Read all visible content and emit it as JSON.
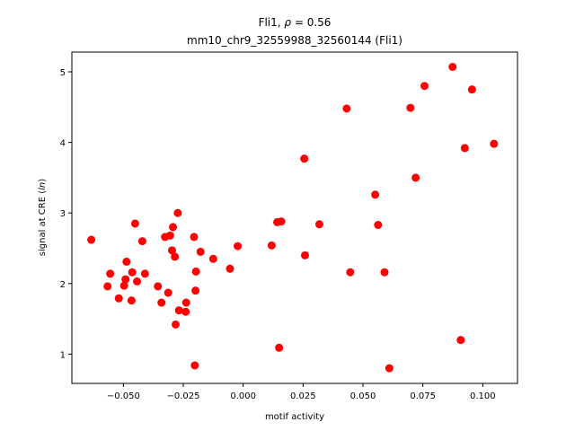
{
  "chart_data": {
    "type": "scatter",
    "title_line1_prefix": "Fli1, ",
    "title_line1_rho": "ρ",
    "title_line1_suffix": " = 0.56",
    "title_line2": "mm10_chr9_32559988_32560144 (Fli1)",
    "xlabel": "motif activity",
    "ylabel_prefix": "signal at CRE (",
    "ylabel_italic": "ln",
    "ylabel_suffix": ")",
    "xlim": [
      -0.0715,
      0.1145
    ],
    "ylim": [
      0.585,
      5.28
    ],
    "xticks": [
      -0.05,
      -0.025,
      0.0,
      0.025,
      0.05,
      0.075,
      0.1
    ],
    "xtick_labels": [
      "−0.050",
      "−0.025",
      "0.000",
      "0.025",
      "0.050",
      "0.075",
      "0.100"
    ],
    "yticks": [
      1,
      2,
      3,
      4,
      5
    ],
    "ytick_labels": [
      "1",
      "2",
      "3",
      "4",
      "5"
    ],
    "marker_color": "#ff0000",
    "grid": false,
    "points": [
      [
        -0.0634,
        2.62
      ],
      [
        -0.0566,
        1.96
      ],
      [
        -0.0555,
        2.14
      ],
      [
        -0.0519,
        1.79
      ],
      [
        -0.0497,
        1.97
      ],
      [
        -0.0491,
        2.06
      ],
      [
        -0.0487,
        2.31
      ],
      [
        -0.0466,
        1.76
      ],
      [
        -0.0463,
        2.16
      ],
      [
        -0.0451,
        2.85
      ],
      [
        -0.0443,
        2.03
      ],
      [
        -0.0421,
        2.6
      ],
      [
        -0.041,
        2.14
      ],
      [
        -0.0356,
        1.96
      ],
      [
        -0.0341,
        1.73
      ],
      [
        -0.0326,
        2.66
      ],
      [
        -0.0313,
        1.87
      ],
      [
        -0.0305,
        2.68
      ],
      [
        -0.0297,
        2.47
      ],
      [
        -0.0293,
        2.8
      ],
      [
        -0.0285,
        2.38
      ],
      [
        -0.0282,
        1.42
      ],
      [
        -0.0273,
        3.0
      ],
      [
        -0.0268,
        1.62
      ],
      [
        -0.024,
        1.6
      ],
      [
        -0.0238,
        1.73
      ],
      [
        -0.0205,
        2.66
      ],
      [
        -0.0202,
        0.84
      ],
      [
        -0.0199,
        1.9
      ],
      [
        -0.0197,
        2.17
      ],
      [
        -0.0178,
        2.45
      ],
      [
        -0.0125,
        2.35
      ],
      [
        -0.0055,
        2.21
      ],
      [
        -0.0023,
        2.53
      ],
      [
        0.0119,
        2.54
      ],
      [
        0.0142,
        2.87
      ],
      [
        0.015,
        1.09
      ],
      [
        0.0159,
        2.88
      ],
      [
        0.0255,
        3.77
      ],
      [
        0.0258,
        2.4
      ],
      [
        0.0318,
        2.84
      ],
      [
        0.0432,
        4.48
      ],
      [
        0.0447,
        2.16
      ],
      [
        0.0551,
        3.26
      ],
      [
        0.0563,
        2.83
      ],
      [
        0.059,
        2.16
      ],
      [
        0.061,
        0.8
      ],
      [
        0.0698,
        4.49
      ],
      [
        0.072,
        3.5
      ],
      [
        0.0757,
        4.8
      ],
      [
        0.0874,
        5.07
      ],
      [
        0.0908,
        1.2
      ],
      [
        0.0925,
        3.92
      ],
      [
        0.0955,
        4.75
      ],
      [
        0.1047,
        3.98
      ]
    ]
  }
}
